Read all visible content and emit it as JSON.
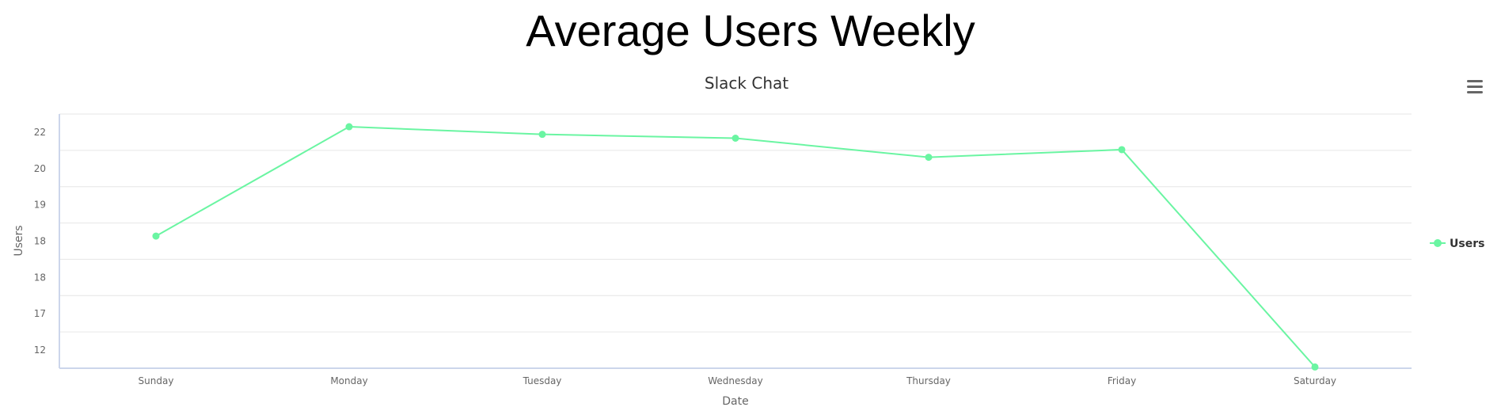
{
  "page": {
    "title": "Average Users Weekly"
  },
  "colors": {
    "series": "#6af5a2",
    "grid": "#e6e6e6",
    "axis": "#ccd6eb",
    "menu": "#666666"
  },
  "menu": {
    "icon": "hamburger-menu-icon"
  },
  "chart_data": {
    "type": "line",
    "title": "Average Users Weekly",
    "subtitle": "Slack Chat",
    "xlabel": "Date",
    "ylabel": "Users",
    "categories": [
      "Sunday",
      "Monday",
      "Tuesday",
      "Wednesday",
      "Thursday",
      "Friday",
      "Saturday"
    ],
    "y_tick_labels": [
      "12",
      "17",
      "18",
      "18",
      "19",
      "20",
      "22"
    ],
    "series": [
      {
        "name": "Users",
        "values": [
          17.2,
          21.5,
          21.2,
          21.05,
          20.3,
          20.6,
          12.05
        ]
      }
    ],
    "ylim": [
      12,
      22
    ],
    "grid": true,
    "legend": "right"
  }
}
